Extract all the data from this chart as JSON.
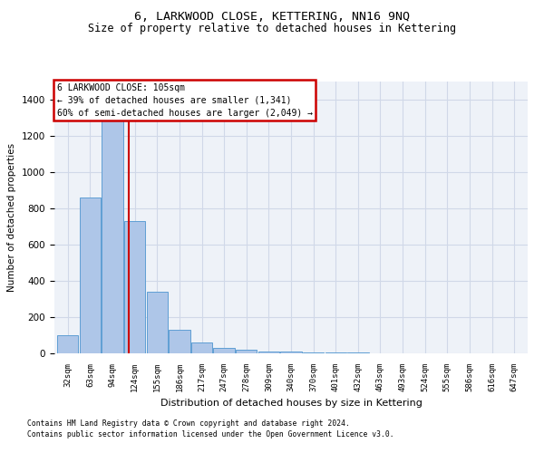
{
  "title1": "6, LARKWOOD CLOSE, KETTERING, NN16 9NQ",
  "title2": "Size of property relative to detached houses in Kettering",
  "xlabel": "Distribution of detached houses by size in Kettering",
  "ylabel": "Number of detached properties",
  "footnote1": "Contains HM Land Registry data © Crown copyright and database right 2024.",
  "footnote2": "Contains public sector information licensed under the Open Government Licence v3.0.",
  "annotation_line1": "6 LARKWOOD CLOSE: 105sqm",
  "annotation_line2": "← 39% of detached houses are smaller (1,341)",
  "annotation_line3": "60% of semi-detached houses are larger (2,049) →",
  "bin_labels": [
    "32sqm",
    "63sqm",
    "94sqm",
    "124sqm",
    "155sqm",
    "186sqm",
    "217sqm",
    "247sqm",
    "278sqm",
    "309sqm",
    "340sqm",
    "370sqm",
    "401sqm",
    "432sqm",
    "463sqm",
    "493sqm",
    "524sqm",
    "555sqm",
    "586sqm",
    "616sqm",
    "647sqm"
  ],
  "bar_values": [
    100,
    860,
    1340,
    730,
    340,
    130,
    60,
    30,
    20,
    10,
    10,
    5,
    5,
    5,
    0,
    0,
    0,
    0,
    0,
    0,
    0
  ],
  "bar_color": "#aec6e8",
  "bar_edge_color": "#5f9fd4",
  "vline_x": 2.72,
  "vline_color": "#cc0000",
  "annotation_box_color": "#cc0000",
  "annotation_box_fill": "#ffffff",
  "grid_color": "#d0d8e8",
  "ylim": [
    0,
    1500
  ],
  "yticks": [
    0,
    200,
    400,
    600,
    800,
    1000,
    1200,
    1400
  ],
  "bg_color": "#eef2f8"
}
